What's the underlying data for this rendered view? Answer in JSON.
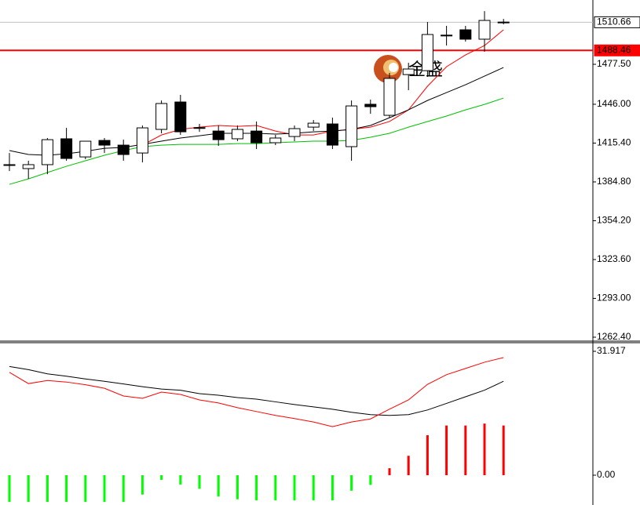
{
  "chart_data": [
    {
      "type": "candlestick",
      "open": [
        1398.4,
        1395.3,
        1398.4,
        1418.8,
        1404.5,
        1417.5,
        1413.8,
        1407.6,
        1426.2,
        1447.8,
        1427.6,
        1424.9,
        1418.8,
        1424.9,
        1415.7,
        1420.6,
        1428.0,
        1430.5,
        1412.6,
        1446.0,
        1437.3,
        1469.4,
        1472.5,
        1500.5,
        1504.7,
        1497.3,
        1510.8
      ],
      "high": [
        1407.6,
        1401.5,
        1419.4,
        1427.4,
        1416.9,
        1419.4,
        1418.1,
        1429.3,
        1449.0,
        1453.4,
        1430.5,
        1429.3,
        1429.3,
        1432.4,
        1421.9,
        1429.3,
        1433.6,
        1435.5,
        1449.0,
        1449.7,
        1470.7,
        1478.7,
        1510.9,
        1507.8,
        1507.8,
        1519.5,
        1513.3
      ],
      "low": [
        1393.4,
        1387.2,
        1390.9,
        1401.5,
        1402.7,
        1407.6,
        1401.5,
        1400.2,
        1423.1,
        1421.9,
        1424.3,
        1413.2,
        1416.9,
        1410.7,
        1413.8,
        1416.9,
        1425.0,
        1410.7,
        1401.5,
        1438.5,
        1435.5,
        1457.1,
        1467.6,
        1492.3,
        1495.4,
        1487.4,
        1509.0
      ],
      "close": [
        1397.8,
        1398.4,
        1418.1,
        1403.3,
        1416.9,
        1413.8,
        1406.4,
        1427.4,
        1446.6,
        1424.3,
        1427.2,
        1418.1,
        1426.2,
        1415.7,
        1419.4,
        1426.8,
        1431.1,
        1413.8,
        1444.7,
        1444.1,
        1466.4,
        1473.8,
        1501.0,
        1500.1,
        1497.3,
        1512.1,
        1510.6
      ],
      "lines": [
        {
          "color": "#ff0000",
          "values": [
            null,
            null,
            null,
            null,
            null,
            null,
            null,
            1413.8,
            1421.8,
            1426.2,
            1428.0,
            1429.3,
            1428.6,
            1429.3,
            1424.9,
            1421.8,
            1421.8,
            1424.9,
            1426.2,
            1428.0,
            1432.4,
            1441.6,
            1460.2,
            1475.6,
            1484.9,
            1492.3,
            1504.7
          ]
        },
        {
          "color": "#000000",
          "values": [
            1409.5,
            1406.4,
            1405.8,
            1407.0,
            1408.9,
            1411.3,
            1412.0,
            1414.4,
            1416.9,
            1419.4,
            1421.2,
            1423.1,
            1423.1,
            1423.1,
            1422.5,
            1423.1,
            1424.3,
            1424.9,
            1426.2,
            1429.3,
            1435.4,
            1441.6,
            1449.0,
            1455.2,
            1461.4,
            1468.2,
            1475.0
          ]
        },
        {
          "color": "#00c000",
          "values": [
            1382.9,
            1387.2,
            1392.2,
            1397.1,
            1401.5,
            1405.8,
            1409.5,
            1412.6,
            1413.8,
            1414.4,
            1414.4,
            1414.4,
            1415.0,
            1415.0,
            1415.7,
            1416.3,
            1416.9,
            1416.9,
            1417.5,
            1420.0,
            1423.1,
            1428.0,
            1432.4,
            1436.7,
            1441.6,
            1445.9,
            1450.9
          ]
        }
      ],
      "levels": [
        {
          "value": 1510.66,
          "color": "#c0c0c0"
        },
        {
          "value": 1488.46,
          "color": "#ff0000"
        }
      ],
      "watermark": "金盛",
      "ylim": [
        1259.3,
        1528.2
      ],
      "yticks": [
        {
          "value": 1477.5,
          "label": "1477.50"
        },
        {
          "value": 1446,
          "label": "1446.00"
        },
        {
          "value": 1415.4,
          "label": "1415.40"
        },
        {
          "value": 1384.8,
          "label": "1384.80"
        },
        {
          "value": 1354.2,
          "label": "1354.20"
        },
        {
          "value": 1323.6,
          "label": "1323.60"
        },
        {
          "value": 1293,
          "label": "1293.00"
        },
        {
          "value": 1262.4,
          "label": "1262.40"
        }
      ]
    },
    {
      "type": "macd",
      "histogram": [
        -6.9,
        -6.9,
        -6.9,
        -6.9,
        -6.9,
        -6.9,
        -6.9,
        -5.0,
        -1.2,
        -2.4,
        -3.5,
        -5.5,
        -6.2,
        -6.5,
        -6.5,
        -6.5,
        -6.5,
        -6.5,
        -4.0,
        -2.5,
        1.8,
        5.0,
        10.3,
        12.8,
        12.8,
        13.3,
        12.8
      ],
      "up_color": "#ff0000",
      "down_color": "#00ff00",
      "lines": [
        {
          "color": "#000000",
          "values": [
            28.0,
            27.2,
            26.1,
            25.5,
            24.8,
            24.2,
            23.5,
            22.8,
            22.2,
            21.9,
            21.0,
            20.6,
            20.0,
            19.6,
            18.9,
            18.2,
            17.6,
            17.0,
            16.2,
            15.6,
            15.4,
            15.6,
            16.8,
            18.5,
            20.2,
            21.9,
            24.2
          ]
        },
        {
          "color": "#ff0000",
          "values": [
            26.5,
            23.6,
            24.4,
            24.0,
            23.3,
            22.4,
            20.4,
            19.8,
            21.4,
            20.8,
            19.4,
            18.6,
            17.4,
            16.4,
            15.4,
            14.6,
            13.7,
            12.5,
            13.7,
            14.5,
            17.0,
            19.4,
            23.4,
            25.9,
            27.5,
            29.1,
            30.3
          ]
        }
      ],
      "ylim": [
        -7.68,
        34.14
      ],
      "yticks": [
        31.917,
        {
          "value": 0,
          "label": "0.00"
        }
      ]
    }
  ]
}
